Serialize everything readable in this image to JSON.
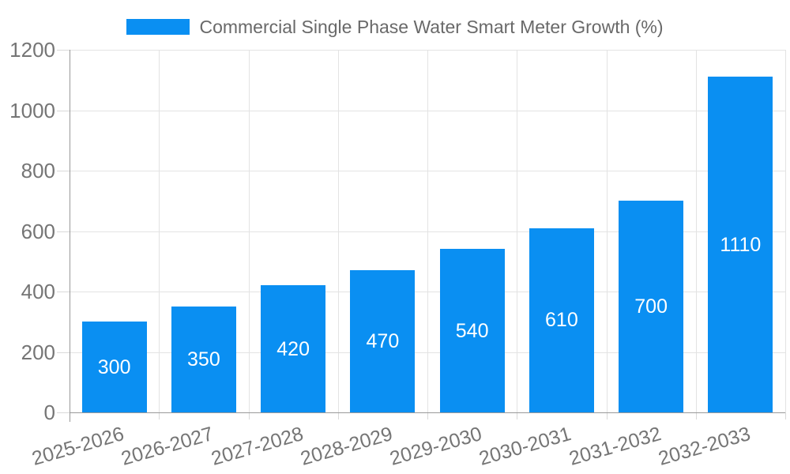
{
  "chart_data": {
    "type": "bar",
    "series_name": "Commercial Single Phase Water Smart Meter Growth (%)",
    "categories": [
      "2025-2026",
      "2026-2027",
      "2027-2028",
      "2028-2029",
      "2029-2030",
      "2030-2031",
      "2031-2032",
      "2032-2033"
    ],
    "values": [
      300,
      350,
      420,
      470,
      540,
      610,
      700,
      1110
    ],
    "title": "",
    "xlabel": "",
    "ylabel": "",
    "ylim": [
      0,
      1200
    ],
    "y_ticks": [
      0,
      200,
      400,
      600,
      800,
      1000,
      1200
    ],
    "grid": true,
    "legend_position": "top-center",
    "value_labels": "inside-center",
    "colors": {
      "bar": "#0A8FF2",
      "grid": "#e3e3e3",
      "axis": "#999999",
      "tick": "#d9d9d9",
      "tick_label": "#757575",
      "value_label": "#ffffff",
      "legend_text": "#696969"
    }
  }
}
